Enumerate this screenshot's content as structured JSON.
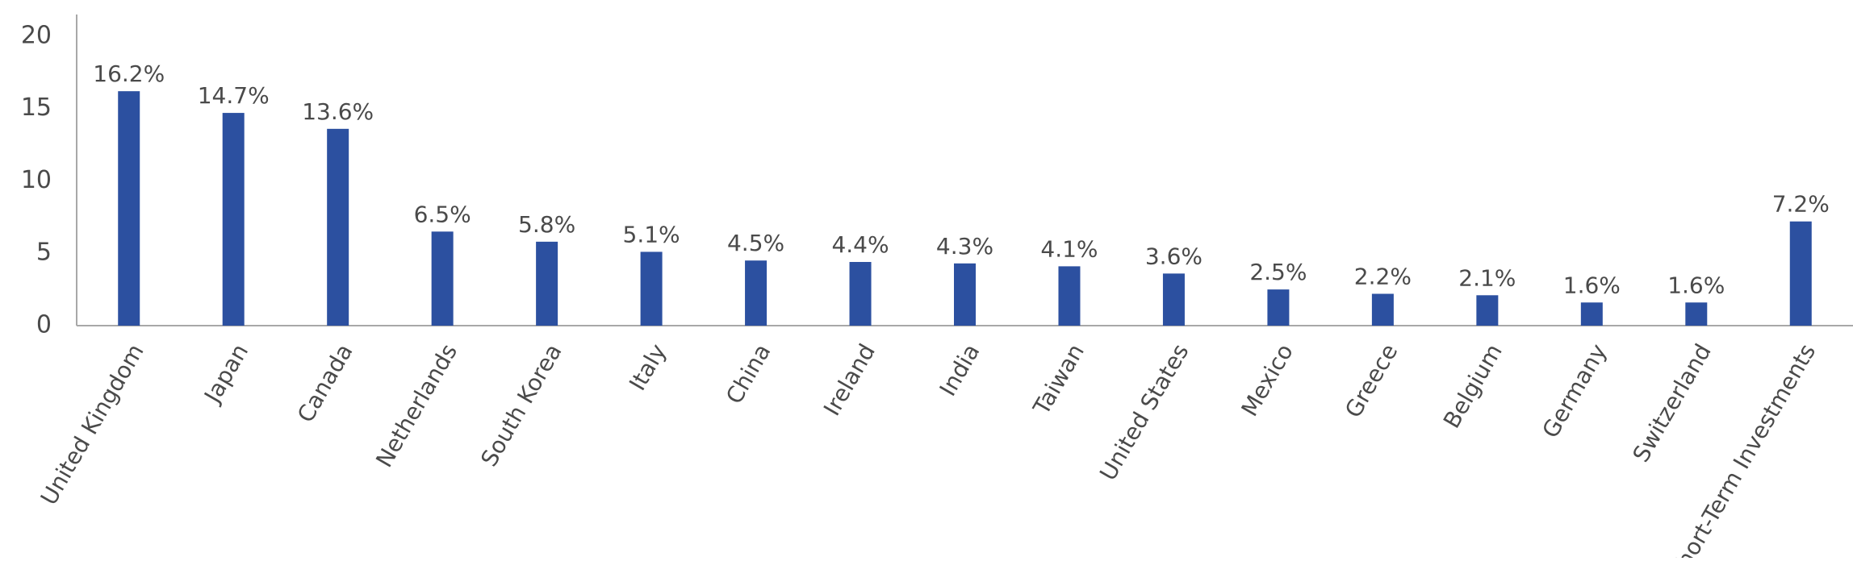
{
  "chart_data": {
    "type": "bar",
    "categories": [
      "United Kingdom",
      "Japan",
      "Canada",
      "Netherlands",
      "South Korea",
      "Italy",
      "China",
      "Ireland",
      "India",
      "Taiwan",
      "United States",
      "Mexico",
      "Greece",
      "Belgium",
      "Germany",
      "Switzerland",
      "Short-Term Investments"
    ],
    "values": [
      16.2,
      14.7,
      13.6,
      6.5,
      5.8,
      5.1,
      4.5,
      4.4,
      4.3,
      4.1,
      3.6,
      2.5,
      2.2,
      2.1,
      1.6,
      1.6,
      7.2
    ],
    "value_labels": [
      "16.2%",
      "14.7%",
      "13.6%",
      "6.5%",
      "5.8%",
      "5.1%",
      "4.5%",
      "4.4%",
      "4.3%",
      "4.1%",
      "3.6%",
      "2.5%",
      "2.2%",
      "2.1%",
      "1.6%",
      "1.6%",
      "7.2%"
    ],
    "color": "#2c50a0",
    "ylim": [
      0,
      21.5
    ],
    "yticks": [
      0,
      5,
      10,
      15,
      20
    ],
    "grid": false
  }
}
